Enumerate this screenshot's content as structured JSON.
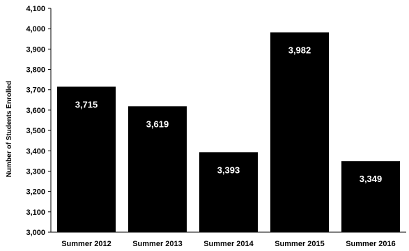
{
  "chart_data": {
    "type": "bar",
    "title": "",
    "xlabel": "",
    "ylabel": "Number of Students Enrolled",
    "categories": [
      "Summer 2012",
      "Summer 2013",
      "Summer 2014",
      "Summer 2015",
      "Summer 2016"
    ],
    "values": [
      3715,
      3619,
      3393,
      3982,
      3349
    ],
    "data_labels": [
      "3,715",
      "3,619",
      "3,393",
      "3,982",
      "3,349"
    ],
    "ylim": [
      3000,
      4100
    ],
    "yticks": [
      3000,
      3100,
      3200,
      3300,
      3400,
      3500,
      3600,
      3700,
      3800,
      3900,
      4000,
      4100
    ],
    "ytick_labels": [
      "3,000",
      "3,100",
      "3,200",
      "3,300",
      "3,400",
      "3,500",
      "3,600",
      "3,700",
      "3,800",
      "3,900",
      "4,000",
      "4,100"
    ],
    "grid": false,
    "legend": "none",
    "colors": {
      "bar": "#000000",
      "bar_label": "#ffffff",
      "axis": "#000000"
    }
  }
}
